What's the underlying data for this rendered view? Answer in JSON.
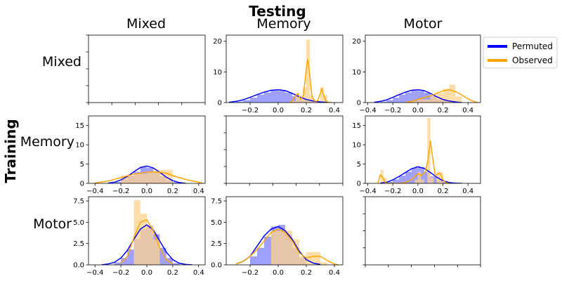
{
  "figure": {
    "title": "Testing",
    "ylabel": "Training",
    "columns": [
      "Mixed",
      "Memory",
      "Motor"
    ],
    "rows": [
      "Mixed",
      "Memory",
      "Motor"
    ]
  },
  "legend": {
    "placement": "right",
    "entries": [
      {
        "label": "Permuted",
        "color": "#0000ff"
      },
      {
        "label": "Observed",
        "color": "#ffa500"
      }
    ]
  },
  "colors": {
    "permuted_line": "#0000ff",
    "permuted_fill": "#8080ff",
    "observed_line": "#ffa500",
    "observed_fill": "#ffd28c"
  },
  "chart_data": [
    {
      "type": "area",
      "row": "Mixed",
      "col": "Mixed",
      "empty": true,
      "xticks": [],
      "yticks": [],
      "yticklabels_hidden": true
    },
    {
      "type": "area",
      "row": "Mixed",
      "col": "Memory",
      "empty": false,
      "xlim": [
        -0.37,
        0.46
      ],
      "ylim": [
        0,
        22
      ],
      "xticks": [
        -0.2,
        0.0,
        0.2,
        0.4
      ],
      "yticks": [
        0,
        10,
        20
      ],
      "series": [
        {
          "name": "Permuted",
          "hist": {
            "edges": [
              -0.3,
              -0.25,
              -0.2,
              -0.15,
              -0.1,
              -0.05,
              0.0,
              0.05,
              0.1,
              0.15,
              0.2,
              0.25,
              0.3,
              0.35
            ],
            "heights": [
              0.3,
              0.8,
              1.6,
              2.6,
              3.3,
              3.9,
              3.8,
              3.2,
              2.1,
              1.0,
              0.5,
              0.3,
              0.1
            ]
          },
          "kde": {
            "x": [
              -0.35,
              -0.3,
              -0.25,
              -0.2,
              -0.15,
              -0.1,
              -0.05,
              0.0,
              0.05,
              0.1,
              0.15,
              0.2,
              0.25,
              0.3,
              0.35,
              0.38
            ],
            "y": [
              0.1,
              0.4,
              0.9,
              1.7,
              2.6,
              3.4,
              4.0,
              4.2,
              3.9,
              3.0,
              1.9,
              1.0,
              0.5,
              0.2,
              0.05,
              0.0
            ]
          }
        },
        {
          "name": "Observed",
          "hist": {
            "edges": [
              0.1,
              0.125,
              0.15,
              0.175,
              0.2,
              0.225,
              0.25,
              0.275,
              0.3,
              0.325,
              0.35
            ],
            "heights": [
              0.5,
              3.0,
              1.5,
              5.0,
              20.5,
              2.5,
              0.5,
              0.5,
              5.0,
              2.5
            ]
          },
          "kde": {
            "x": [
              0.08,
              0.1,
              0.12,
              0.14,
              0.16,
              0.18,
              0.2,
              0.21,
              0.22,
              0.24,
              0.26,
              0.28,
              0.3,
              0.31,
              0.32,
              0.34,
              0.36,
              0.38
            ],
            "y": [
              0.0,
              0.5,
              2.0,
              3.0,
              1.0,
              2.5,
              11.0,
              14.0,
              11.0,
              2.0,
              0.5,
              0.5,
              3.0,
              4.5,
              3.0,
              0.5,
              0.1,
              0.0
            ]
          }
        }
      ]
    },
    {
      "type": "area",
      "row": "Mixed",
      "col": "Motor",
      "empty": false,
      "xlim": [
        -0.42,
        0.5
      ],
      "ylim": [
        0,
        22
      ],
      "xticks": [
        -0.4,
        -0.2,
        0.0,
        0.2,
        0.4
      ],
      "yticks": [
        0,
        10,
        20
      ],
      "series": [
        {
          "name": "Permuted",
          "hist": {
            "edges": [
              -0.3,
              -0.25,
              -0.2,
              -0.15,
              -0.1,
              -0.05,
              0.0,
              0.05,
              0.1,
              0.15,
              0.2,
              0.25,
              0.3
            ],
            "heights": [
              0.3,
              0.8,
              1.6,
              2.6,
              3.3,
              3.9,
              3.8,
              3.2,
              2.1,
              1.0,
              0.5,
              0.2
            ]
          },
          "kde": {
            "x": [
              -0.35,
              -0.3,
              -0.25,
              -0.2,
              -0.15,
              -0.1,
              -0.05,
              0.0,
              0.05,
              0.1,
              0.15,
              0.2,
              0.25,
              0.3,
              0.35
            ],
            "y": [
              0.1,
              0.4,
              0.9,
              1.7,
              2.6,
              3.4,
              4.0,
              4.2,
              3.9,
              3.0,
              1.9,
              1.0,
              0.5,
              0.2,
              0.0
            ]
          }
        },
        {
          "name": "Observed",
          "hist": {
            "edges": [
              -0.05,
              0.0,
              0.05,
              0.1,
              0.15,
              0.2,
              0.25,
              0.3,
              0.35
            ],
            "heights": [
              0.5,
              1.0,
              1.0,
              2.0,
              3.0,
              4.5,
              5.8,
              2.0
            ]
          },
          "kde": {
            "x": [
              -0.1,
              -0.05,
              0.0,
              0.05,
              0.1,
              0.15,
              0.2,
              0.25,
              0.3,
              0.35,
              0.4,
              0.45,
              0.48
            ],
            "y": [
              0.1,
              0.4,
              1.0,
              1.6,
              2.2,
              3.0,
              3.8,
              4.2,
              3.6,
              2.5,
              1.2,
              0.3,
              0.0
            ]
          }
        }
      ]
    },
    {
      "type": "area",
      "row": "Memory",
      "col": "Mixed",
      "empty": false,
      "xlim": [
        -0.45,
        0.45
      ],
      "ylim": [
        0,
        17.5
      ],
      "xticks": [
        -0.4,
        -0.2,
        0.0,
        0.2,
        0.4
      ],
      "yticks": [
        0,
        5,
        10,
        15
      ],
      "series": [
        {
          "name": "Permuted",
          "hist": {
            "edges": [
              -0.25,
              -0.2,
              -0.15,
              -0.1,
              -0.05,
              0.0,
              0.05,
              0.1,
              0.15,
              0.2,
              0.25
            ],
            "heights": [
              0.4,
              1.0,
              2.0,
              3.0,
              4.3,
              4.0,
              3.0,
              1.8,
              0.8,
              0.3
            ]
          },
          "kde": {
            "x": [
              -0.3,
              -0.25,
              -0.2,
              -0.15,
              -0.1,
              -0.05,
              0.0,
              0.05,
              0.1,
              0.15,
              0.2,
              0.25,
              0.3
            ],
            "y": [
              0.05,
              0.3,
              0.9,
              1.8,
              3.0,
              4.1,
              4.5,
              4.0,
              2.9,
              1.6,
              0.7,
              0.2,
              0.0
            ]
          }
        },
        {
          "name": "Observed",
          "hist": {
            "edges": [
              -0.2,
              -0.1,
              0.0,
              0.1,
              0.2
            ],
            "heights": [
              2.0,
              2.5,
              3.0,
              3.5
            ]
          },
          "kde": {
            "x": [
              -0.4,
              -0.3,
              -0.2,
              -0.1,
              0.0,
              0.05,
              0.1,
              0.15,
              0.2,
              0.3,
              0.4,
              0.43
            ],
            "y": [
              0.1,
              0.6,
              1.5,
              2.4,
              2.9,
              3.0,
              2.9,
              2.6,
              2.0,
              1.0,
              0.3,
              0.0
            ]
          }
        }
      ]
    },
    {
      "type": "area",
      "row": "Memory",
      "col": "Memory",
      "empty": true,
      "xticks": [],
      "yticks": [],
      "yticklabels_hidden": true
    },
    {
      "type": "area",
      "row": "Memory",
      "col": "Motor",
      "empty": false,
      "xlim": [
        -0.42,
        0.5
      ],
      "ylim": [
        0,
        17.5
      ],
      "xticks": [
        -0.4,
        -0.2,
        0.0,
        0.2,
        0.4
      ],
      "yticks": [
        0,
        5,
        10,
        15
      ],
      "series": [
        {
          "name": "Permuted",
          "hist": {
            "edges": [
              -0.25,
              -0.2,
              -0.15,
              -0.1,
              -0.05,
              0.0,
              0.05,
              0.1,
              0.15,
              0.2,
              0.25
            ],
            "heights": [
              0.4,
              1.0,
              2.0,
              3.0,
              4.0,
              4.2,
              3.0,
              1.8,
              0.8,
              0.3
            ]
          },
          "kde": {
            "x": [
              -0.3,
              -0.25,
              -0.2,
              -0.15,
              -0.1,
              -0.05,
              0.0,
              0.05,
              0.1,
              0.15,
              0.2,
              0.25,
              0.3,
              0.35
            ],
            "y": [
              0.05,
              0.3,
              0.9,
              1.8,
              2.8,
              3.8,
              4.3,
              3.9,
              2.8,
              1.6,
              0.7,
              0.2,
              0.05,
              0.0
            ]
          }
        },
        {
          "name": "Observed",
          "hist": {
            "edges": [
              -0.3,
              -0.275,
              -0.25,
              -0.225,
              -0.2,
              -0.175,
              -0.15,
              -0.125,
              -0.1,
              -0.075,
              -0.05,
              -0.025,
              0.0,
              0.025,
              0.05,
              0.075,
              0.1,
              0.125,
              0.15,
              0.175,
              0.2,
              0.225,
              0.25
            ],
            "heights": [
              3.5,
              1.5,
              0,
              0,
              0,
              0,
              0,
              0,
              0,
              0,
              0,
              1.0,
              3.0,
              1.0,
              0,
              17.0,
              1.5,
              0,
              3.0,
              3.0,
              0,
              0
            ]
          },
          "kde": {
            "x": [
              -0.32,
              -0.3,
              -0.28,
              -0.26,
              -0.24,
              -0.2,
              -0.15,
              -0.1,
              -0.05,
              0.0,
              0.03,
              0.06,
              0.08,
              0.1,
              0.12,
              0.14,
              0.16,
              0.18,
              0.2,
              0.22,
              0.25
            ],
            "y": [
              0.0,
              2.2,
              1.5,
              0.2,
              0.0,
              0.0,
              0.0,
              0.2,
              1.0,
              2.5,
              2.0,
              3.0,
              6.0,
              11.0,
              6.0,
              2.0,
              2.5,
              2.5,
              1.0,
              0.2,
              0.0
            ]
          }
        }
      ]
    },
    {
      "type": "area",
      "row": "Motor",
      "col": "Mixed",
      "empty": false,
      "xlim": [
        -0.45,
        0.45
      ],
      "ylim": [
        0,
        8
      ],
      "xticks": [
        -0.4,
        -0.2,
        0.0,
        0.2,
        0.4
      ],
      "yticks": [
        0,
        2.5,
        5.0,
        7.5
      ],
      "series": [
        {
          "name": "Permuted",
          "hist": {
            "edges": [
              -0.25,
              -0.2,
              -0.15,
              -0.1,
              -0.05,
              0.0,
              0.05,
              0.1,
              0.15,
              0.2,
              0.25
            ],
            "heights": [
              0.3,
              0.8,
              1.8,
              3.0,
              4.2,
              4.6,
              3.6,
              2.0,
              0.8,
              0.2
            ]
          },
          "kde": {
            "x": [
              -0.35,
              -0.3,
              -0.25,
              -0.2,
              -0.15,
              -0.1,
              -0.05,
              0.0,
              0.05,
              0.1,
              0.15,
              0.2,
              0.25,
              0.3,
              0.35
            ],
            "y": [
              0.0,
              0.1,
              0.3,
              0.8,
              1.7,
              3.0,
              4.2,
              4.7,
              4.1,
              2.8,
              1.5,
              0.6,
              0.2,
              0.05,
              0.0
            ]
          }
        },
        {
          "name": "Observed",
          "hist": {
            "edges": [
              -0.1,
              -0.05,
              0.0,
              0.05,
              0.1
            ],
            "heights": [
              7.6,
              6.0,
              4.6,
              3.0
            ]
          },
          "kde": {
            "x": [
              -0.2,
              -0.15,
              -0.1,
              -0.05,
              0.0,
              0.05,
              0.1,
              0.15,
              0.2
            ],
            "y": [
              0.2,
              1.0,
              3.2,
              5.0,
              5.3,
              4.0,
              2.0,
              0.6,
              0.1
            ]
          }
        }
      ]
    },
    {
      "type": "area",
      "row": "Motor",
      "col": "Memory",
      "empty": false,
      "xlim": [
        -0.37,
        0.46
      ],
      "ylim": [
        0,
        8
      ],
      "xticks": [
        -0.2,
        0.0,
        0.2,
        0.4
      ],
      "yticks": [
        0,
        2.5,
        5.0,
        7.5
      ],
      "series": [
        {
          "name": "Permuted",
          "hist": {
            "edges": [
              -0.2,
              -0.15,
              -0.1,
              -0.05,
              0.0,
              0.05,
              0.1,
              0.15,
              0.2
            ],
            "heights": [
              1.0,
              2.0,
              3.3,
              4.5,
              4.7,
              3.6,
              2.0,
              0.8
            ]
          },
          "kde": {
            "x": [
              -0.3,
              -0.25,
              -0.2,
              -0.15,
              -0.1,
              -0.05,
              0.0,
              0.05,
              0.1,
              0.15,
              0.2,
              0.25,
              0.3
            ],
            "y": [
              0.1,
              0.4,
              1.0,
              2.2,
              3.4,
              4.2,
              4.5,
              4.0,
              3.0,
              1.6,
              0.6,
              0.2,
              0.05
            ]
          }
        },
        {
          "name": "Observed",
          "hist": {
            "edges": [
              -0.05,
              0.0,
              0.05,
              0.1,
              0.15,
              0.2,
              0.25,
              0.3,
              0.35
            ],
            "heights": [
              4.0,
              4.0,
              4.0,
              3.0,
              1.0,
              1.5,
              1.5,
              0.3
            ]
          },
          "kde": {
            "x": [
              -0.3,
              -0.25,
              -0.2,
              -0.15,
              -0.1,
              -0.05,
              0.0,
              0.05,
              0.1,
              0.15,
              0.2,
              0.25,
              0.3,
              0.35,
              0.4,
              0.43
            ],
            "y": [
              0.1,
              0.4,
              1.0,
              1.8,
              2.8,
              3.8,
              4.2,
              3.8,
              2.8,
              1.4,
              0.8,
              1.0,
              1.0,
              0.5,
              0.1,
              0.0
            ]
          }
        }
      ]
    },
    {
      "type": "area",
      "row": "Motor",
      "col": "Motor",
      "empty": true,
      "xticks": [],
      "yticks": [],
      "yticklabels_hidden": true
    }
  ]
}
